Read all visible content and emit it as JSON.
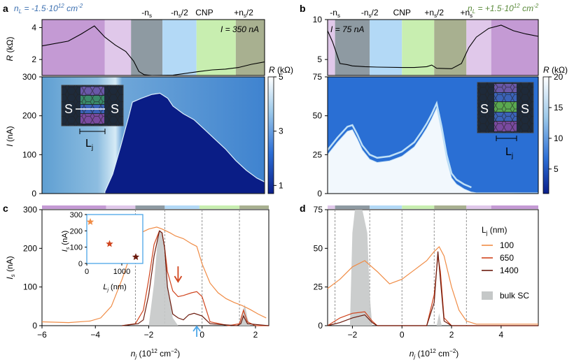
{
  "chart_data": [
    {
      "panel": "a",
      "type": "line+heatmap",
      "fixed_density_label": "n_L = -1.5·10^12 cm^-2",
      "current_label": "I = 350 nA",
      "top_labels": [
        "-n_s",
        "-n_s/2",
        "CNP",
        "+n_s/2"
      ],
      "resistance_trace": {
        "ylabel": "R (kΩ)",
        "ylim": [
          1,
          4.5
        ],
        "yticks": [
          2,
          4
        ],
        "x": [
          -6.0,
          -5.0,
          -4.5,
          -4.0,
          -3.6,
          -3.2,
          -2.8,
          -2.5,
          -2.3,
          -2.1,
          -1.8,
          -1.0,
          0.0,
          0.5,
          1.0,
          1.5,
          2.0,
          2.5
        ],
        "y": [
          2.85,
          3.15,
          3.6,
          4.1,
          3.4,
          2.9,
          2.5,
          1.9,
          1.25,
          1.05,
          1.0,
          1.02,
          1.25,
          1.35,
          1.4,
          1.5,
          1.7,
          1.85
        ]
      },
      "heatmap": {
        "ylabel": "I (nA)",
        "ylim": [
          0,
          300
        ],
        "yticks": [
          0,
          100,
          200,
          300
        ],
        "colorbar_label": "R (kΩ)",
        "colorbar_ticks": [
          1,
          3,
          5
        ],
        "boundary_x": [
          -3.6,
          -3.3,
          -3.0,
          -2.8,
          -2.7,
          -2.55,
          -2.2,
          -1.8,
          -1.5,
          -1.2,
          -1.0,
          -0.6,
          -0.2,
          0.2,
          0.6,
          1.0,
          1.4,
          1.8,
          2.2,
          2.5
        ],
        "boundary_I": [
          5,
          50,
          120,
          170,
          195,
          235,
          245,
          255,
          258,
          245,
          225,
          205,
          190,
          165,
          140,
          115,
          85,
          60,
          40,
          30
        ]
      },
      "inset": {
        "labels": [
          "S",
          "S",
          "L_j"
        ]
      }
    },
    {
      "panel": "b",
      "type": "line+heatmap",
      "fixed_density_label": "n_L = +1.5·10^12 cm^-2",
      "current_label": "I = 75 nA",
      "top_labels": [
        "-n_s",
        "-n_s/2",
        "CNP",
        "+n_s/2",
        "+n_s"
      ],
      "resistance_trace": {
        "ylabel": "R (kΩ)",
        "ylim": [
          3,
          10
        ],
        "yticks": [
          5,
          10
        ],
        "x": [
          -3.0,
          -2.8,
          -2.5,
          -2.2,
          -2.0,
          -1.5,
          -1.0,
          0.0,
          0.5,
          1.0,
          1.2,
          1.4,
          2.0,
          2.4,
          2.7,
          3.0,
          3.5,
          4.0,
          4.5,
          5.0,
          5.5
        ],
        "y": [
          8.6,
          7.2,
          4.5,
          4.35,
          4.2,
          4.1,
          4.05,
          4.0,
          4.0,
          4.1,
          4.3,
          3.9,
          3.85,
          4.5,
          6.5,
          7.8,
          8.9,
          9.3,
          8.6,
          8.2,
          7.9
        ]
      },
      "heatmap": {
        "ylabel": "",
        "ylim": [
          0,
          75
        ],
        "yticks": [
          0,
          25,
          50,
          75
        ],
        "colorbar_label": "R (kΩ)",
        "colorbar_ticks": [
          5,
          10,
          15,
          20
        ],
        "boundary_x": [
          -3.0,
          -2.6,
          -2.2,
          -2.0,
          -1.8,
          -1.6,
          -1.3,
          -1.0,
          -0.5,
          0.0,
          0.5,
          0.8,
          1.0,
          1.2,
          1.4,
          1.6,
          1.8,
          2.0,
          2.2,
          2.5,
          2.8
        ],
        "boundary_I": [
          25,
          33,
          40,
          41,
          35,
          28,
          22,
          20,
          21,
          24,
          30,
          37,
          42,
          48,
          55,
          40,
          22,
          10,
          6,
          3,
          1
        ]
      },
      "inset": {
        "labels": [
          "S",
          "S",
          "L_j"
        ]
      }
    },
    {
      "panel": "c",
      "type": "line",
      "xlabel": "n_j (10^12 cm^-2)",
      "ylabel": "I_s (nA)",
      "xlim": [
        -6,
        2.5
      ],
      "ylim": [
        0,
        300
      ],
      "xticks": [
        -6,
        -4,
        -2,
        0,
        2
      ],
      "yticks": [
        0,
        100,
        200,
        300
      ],
      "series": [
        {
          "name": "100",
          "color": "#f08c46",
          "x": [
            -6.0,
            -5.0,
            -4.2,
            -3.8,
            -3.4,
            -3.0,
            -2.6,
            -2.3,
            -2.0,
            -1.7,
            -1.5,
            -1.2,
            -1.0,
            -0.7,
            -0.4,
            -0.2,
            0.0,
            0.3,
            0.6,
            0.9,
            1.2,
            1.5,
            1.8,
            2.1,
            2.4
          ],
          "y": [
            10,
            8,
            12,
            20,
            50,
            120,
            200,
            240,
            250,
            255,
            250,
            240,
            232,
            225,
            212,
            205,
            160,
            110,
            85,
            70,
            60,
            52,
            42,
            30,
            20
          ]
        },
        {
          "name": "650",
          "color": "#d0451e",
          "x": [
            -3.0,
            -2.5,
            -2.2,
            -2.0,
            -1.8,
            -1.6,
            -1.5,
            -1.4,
            -1.3,
            -1.1,
            -0.9,
            -0.7,
            -0.4,
            -0.2,
            0.0,
            0.3,
            1.0,
            1.4,
            1.55,
            1.7,
            2.0,
            2.5
          ],
          "y": [
            0,
            5,
            40,
            120,
            210,
            245,
            240,
            200,
            140,
            90,
            75,
            78,
            85,
            88,
            75,
            10,
            0,
            5,
            40,
            10,
            0,
            0
          ]
        },
        {
          "name": "1400",
          "color": "#6b1a0d",
          "x": [
            -3.0,
            -2.4,
            -2.2,
            -2.0,
            -1.8,
            -1.6,
            -1.5,
            -1.4,
            -1.3,
            -1.1,
            -0.9,
            -0.7,
            -0.5,
            -0.3,
            0.0,
            0.3,
            1.3,
            1.45,
            1.55,
            1.7,
            2.5
          ],
          "y": [
            0,
            5,
            15,
            80,
            180,
            245,
            240,
            200,
            100,
            30,
            20,
            15,
            28,
            32,
            25,
            5,
            0,
            5,
            25,
            5,
            0
          ]
        }
      ],
      "bulk_sc": {
        "name": "bulk SC",
        "color": "#c5c8c8",
        "x": [
          -2.0,
          -1.8,
          -1.65,
          -1.55,
          -1.45,
          -1.3,
          -1.1,
          -0.9,
          1.4,
          1.5,
          1.6,
          1.7,
          1.8
        ],
        "y": [
          0,
          110,
          235,
          248,
          220,
          110,
          20,
          0,
          0,
          30,
          55,
          20,
          0
        ]
      },
      "vlines": [
        -2.5,
        -1.4,
        0.0,
        1.4
      ],
      "arrows": [
        {
          "x": -0.9,
          "y": 110,
          "direction": "down",
          "color": "#d0451e"
        },
        {
          "x": -0.2,
          "y": 0,
          "direction": "up",
          "color": "#4ca6e8"
        }
      ],
      "inset": {
        "xlabel": "L_j (nm)",
        "ylabel": "I_s (nA)",
        "xlim": [
          0,
          1600
        ],
        "ylim": [
          0,
          300
        ],
        "xticks": [
          0,
          1000
        ],
        "yticks": [
          0,
          100,
          200,
          300
        ],
        "points": [
          {
            "x": 100,
            "y": 255,
            "color": "#f08c46"
          },
          {
            "x": 650,
            "y": 120,
            "color": "#d0451e"
          },
          {
            "x": 1400,
            "y": 40,
            "color": "#6b1a0d"
          }
        ]
      }
    },
    {
      "panel": "d",
      "type": "line",
      "xlabel": "n_j (10^12 cm^-2)",
      "ylabel": "",
      "xlim": [
        -3,
        5.5
      ],
      "ylim": [
        0,
        75
      ],
      "xticks": [
        -2,
        0,
        2,
        4
      ],
      "yticks": [
        0,
        25,
        50,
        75
      ],
      "legend_title": "L_j (nm)",
      "series": [
        {
          "name": "100",
          "color": "#f08c46",
          "x": [
            -3.0,
            -2.5,
            -2.0,
            -1.5,
            -1.0,
            -0.5,
            0.0,
            0.5,
            1.0,
            1.3,
            1.5,
            1.7,
            2.0,
            2.3,
            2.6,
            3.0,
            3.5,
            4.0,
            5.0,
            5.5
          ],
          "y": [
            24,
            30,
            38,
            42,
            35,
            27,
            30,
            36,
            42,
            48,
            51,
            45,
            25,
            10,
            3,
            1,
            1,
            1,
            1,
            1
          ]
        },
        {
          "name": "650",
          "color": "#d0451e",
          "x": [
            -3.0,
            -2.5,
            -2.0,
            -1.5,
            -1.2,
            -1.0,
            1.0,
            1.3,
            1.45,
            1.55,
            1.7,
            2.0,
            5.5
          ],
          "y": [
            0,
            5,
            8,
            9,
            3,
            0,
            0,
            20,
            45,
            35,
            5,
            0,
            0
          ]
        },
        {
          "name": "1400",
          "color": "#6b1a0d",
          "x": [
            -3.0,
            -2.5,
            -2.0,
            -1.5,
            -1.2,
            -1.0,
            1.0,
            1.3,
            1.45,
            1.55,
            1.7,
            2.0,
            5.5
          ],
          "y": [
            0,
            2,
            5,
            7,
            2,
            0,
            0,
            15,
            48,
            30,
            3,
            0,
            0
          ]
        }
      ],
      "bulk_sc": {
        "name": "bulk SC",
        "color": "#c5c8c8",
        "x": [
          -2.1,
          -2.0,
          -1.9,
          -1.8,
          -1.6,
          -1.4,
          -1.3,
          -1.2,
          1.4,
          1.5,
          1.6
        ],
        "y": [
          0,
          60,
          75,
          75,
          75,
          60,
          20,
          0,
          0,
          8,
          0
        ]
      },
      "vlines": [
        -2.7,
        -1.3,
        0.0,
        1.3,
        2.6
      ]
    }
  ]
}
